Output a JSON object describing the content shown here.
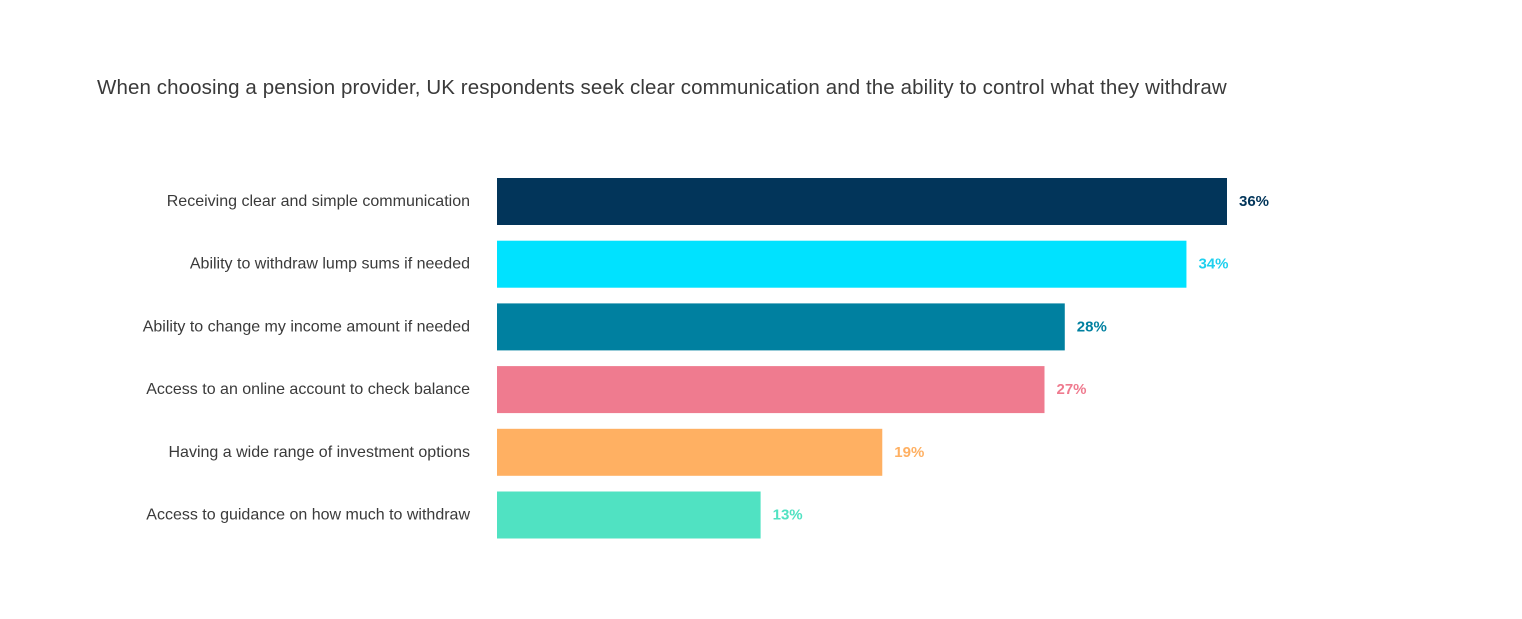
{
  "chart_data": {
    "type": "bar",
    "orientation": "horizontal",
    "title": "When choosing a pension provider, UK respondents seek clear communication and the ability to control what they withdraw",
    "categories": [
      "Receiving clear and simple communication",
      "Ability to withdraw lump sums if needed",
      "Ability to change my income amount if needed",
      "Access to an online account to check balance",
      "Having a wide range of investment options",
      "Access to guidance on how much to withdraw"
    ],
    "values": [
      36,
      34,
      28,
      27,
      19,
      13
    ],
    "value_labels": [
      "36%",
      "34%",
      "28%",
      "27%",
      "19%",
      "13%"
    ],
    "colors": [
      "#02355a",
      "#00e2ff",
      "#0080a0",
      "#ef7b8f",
      "#ffb062",
      "#50e2c2"
    ],
    "label_colors": [
      "#02355a",
      "#1fd0ee",
      "#0080a0",
      "#ef7b8f",
      "#ffb062",
      "#50e2c2"
    ],
    "xlabel": "",
    "ylabel": "",
    "xlim": [
      0,
      36
    ],
    "grid": false,
    "legend": "none"
  }
}
